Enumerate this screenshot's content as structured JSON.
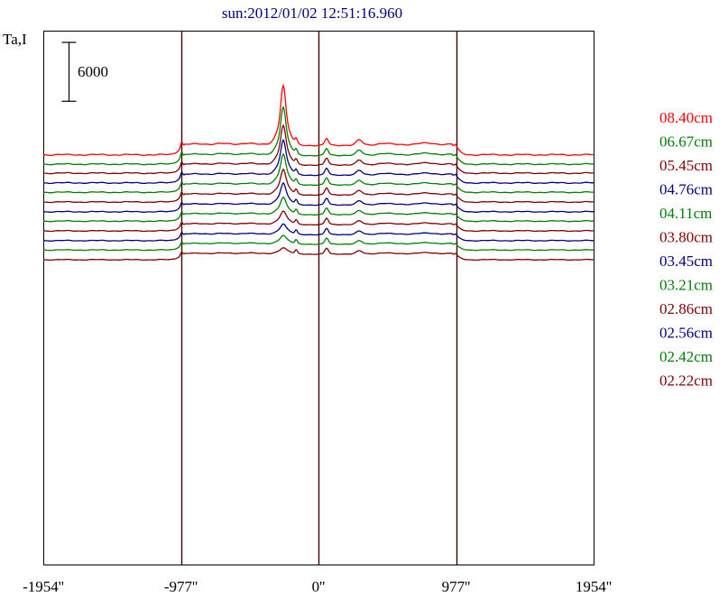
{
  "chart_data": {
    "type": "line",
    "title": "sun:2012/01/02 12:51:16.960",
    "ylabel": "Ta,I",
    "scale_bar": {
      "label": "6000",
      "value": 6000
    },
    "xlim": [
      -1954,
      1954
    ],
    "x_ticks": [
      {
        "value": -1954,
        "label": "-1954''"
      },
      {
        "value": -977,
        "label": "-977''"
      },
      {
        "value": 0,
        "label": "0''"
      },
      {
        "value": 977,
        "label": "977''"
      },
      {
        "value": 1954,
        "label": "1954''"
      }
    ],
    "vertical_lines": [
      -977,
      0,
      977
    ],
    "series": [
      {
        "name": "08.40cm",
        "color": "#ff0000",
        "offset": 12300,
        "scale": 1.0,
        "pk": [
          5000,
          6600,
          2300,
          2300
        ]
      },
      {
        "name": "06.67cm",
        "color": "#008000",
        "offset": 11000,
        "scale": 0.93,
        "pk": [
          4200,
          6000,
          2300,
          2500
        ]
      },
      {
        "name": "05.45cm",
        "color": "#800000",
        "offset": 9750,
        "scale": 0.87,
        "pk": [
          3600,
          5400,
          2400,
          2700
        ]
      },
      {
        "name": "04.76cm",
        "color": "#000080",
        "offset": 8400,
        "scale": 0.83,
        "pk": [
          3300,
          5100,
          2500,
          2800
        ]
      },
      {
        "name": "04.11cm",
        "color": "#008000",
        "offset": 7100,
        "scale": 0.79,
        "pk": [
          3000,
          4800,
          2700,
          3000
        ]
      },
      {
        "name": "03.80cm",
        "color": "#800000",
        "offset": 5750,
        "scale": 0.76,
        "pk": [
          2500,
          4300,
          2800,
          3100
        ]
      },
      {
        "name": "03.45cm",
        "color": "#000080",
        "offset": 4400,
        "scale": 0.73,
        "pk": [
          2200,
          3900,
          2800,
          3100
        ]
      },
      {
        "name": "03.21cm",
        "color": "#008000",
        "offset": 3100,
        "scale": 0.7,
        "pk": [
          1700,
          3500,
          2900,
          3200
        ]
      },
      {
        "name": "02.86cm",
        "color": "#800000",
        "offset": 1750,
        "scale": 0.67,
        "pk": [
          1300,
          3000,
          2900,
          3200
        ]
      },
      {
        "name": "02.56cm",
        "color": "#000080",
        "offset": 400,
        "scale": 0.64,
        "pk": [
          1000,
          2600,
          3000,
          3300
        ]
      },
      {
        "name": "02.42cm",
        "color": "#008000",
        "offset": -900,
        "scale": 0.62,
        "pk": [
          800,
          2300,
          3000,
          3300
        ]
      },
      {
        "name": "02.22cm",
        "color": "#800000",
        "offset": -2250,
        "scale": 0.6,
        "pk": [
          500,
          1900,
          3000,
          3300
        ]
      }
    ]
  }
}
